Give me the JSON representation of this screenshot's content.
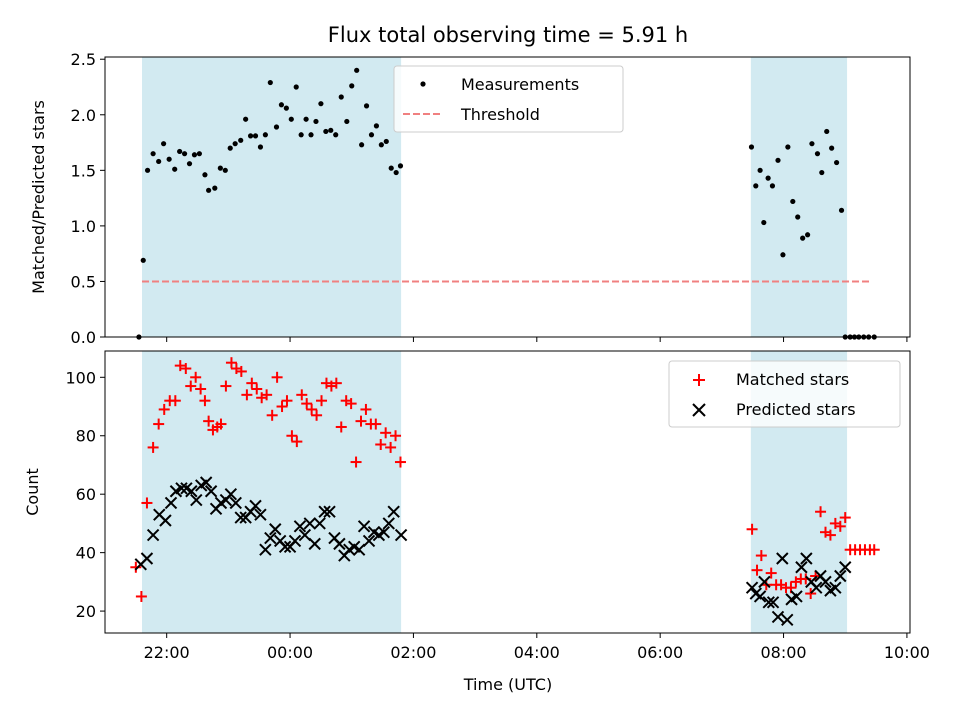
{
  "chart_data": {
    "type": "scatter",
    "title": "Flux total observing time = 5.91 h",
    "xlabel": "Time (UTC)",
    "x_tick_labels": [
      "22:00",
      "00:00",
      "02:00",
      "04:00",
      "06:00",
      "08:00",
      "10:00"
    ],
    "x_ticks_hours": [
      22,
      24,
      26,
      28,
      30,
      32,
      34
    ],
    "xlim_hours": [
      21.0,
      34.05
    ],
    "shaded_intervals_hours": [
      [
        21.6,
        25.8
      ],
      [
        31.47,
        33.03
      ]
    ],
    "shade_color": "#add8e6",
    "panels": [
      {
        "ylabel": "Matched/Predicted stars",
        "ylim": [
          0,
          2.52
        ],
        "y_ticks": [
          0.0,
          0.5,
          1.0,
          1.5,
          2.0,
          2.5
        ],
        "y_tick_labels": [
          "0.0",
          "0.5",
          "1.0",
          "1.5",
          "2.0",
          "2.5"
        ],
        "grid": false,
        "legend_position": "top-center",
        "series": [
          {
            "name": "Measurements",
            "marker": "dot",
            "color": "#000000",
            "x": [
              21.55,
              21.62,
              21.69,
              21.78,
              21.87,
              21.95,
              22.04,
              22.13,
              22.21,
              22.29,
              22.37,
              22.45,
              22.53,
              22.62,
              22.68,
              22.78,
              22.87,
              22.95,
              23.03,
              23.11,
              23.2,
              23.28,
              23.36,
              23.44,
              23.52,
              23.6,
              23.68,
              23.78,
              23.86,
              23.94,
              24.02,
              24.1,
              24.18,
              24.26,
              24.34,
              24.42,
              24.5,
              24.58,
              24.66,
              24.74,
              24.83,
              24.92,
              25.0,
              25.08,
              25.16,
              25.24,
              25.32,
              25.4,
              25.48,
              25.56,
              25.64,
              25.72,
              25.79,
              31.48,
              31.55,
              31.62,
              31.68,
              31.75,
              31.82,
              31.91,
              31.99,
              32.07,
              32.15,
              32.23,
              32.31,
              32.39,
              32.46,
              32.55,
              32.62,
              32.7,
              32.78,
              32.86,
              32.94,
              33.0,
              33.08,
              33.15,
              33.22,
              33.3,
              33.38,
              33.47
            ],
            "y": [
              0.0,
              0.69,
              1.5,
              1.65,
              1.58,
              1.74,
              1.6,
              1.51,
              1.67,
              1.65,
              1.56,
              1.64,
              1.65,
              1.46,
              1.32,
              1.34,
              1.52,
              1.5,
              1.7,
              1.74,
              1.77,
              1.96,
              1.81,
              1.81,
              1.71,
              1.82,
              2.29,
              1.89,
              2.09,
              2.06,
              1.96,
              2.25,
              1.82,
              1.96,
              1.82,
              1.94,
              2.1,
              1.85,
              1.86,
              1.82,
              2.16,
              1.94,
              2.26,
              2.4,
              1.73,
              2.08,
              1.82,
              1.9,
              1.73,
              1.76,
              1.52,
              1.48,
              1.54,
              1.71,
              1.36,
              1.5,
              1.03,
              1.43,
              1.36,
              1.59,
              0.74,
              1.71,
              1.22,
              1.08,
              0.89,
              0.92,
              1.74,
              1.65,
              1.48,
              1.85,
              1.7,
              1.57,
              1.14,
              0.0,
              0.0,
              0.0,
              0.0,
              0.0,
              0.0,
              0.0
            ]
          },
          {
            "name": "Threshold",
            "marker": "dashed-line",
            "color": "#f08080",
            "x": [
              21.6,
              33.4
            ],
            "y": [
              0.5,
              0.5
            ]
          }
        ]
      },
      {
        "ylabel": "Count",
        "ylim": [
          12.5,
          109
        ],
        "y_ticks": [
          20,
          40,
          60,
          80,
          100
        ],
        "y_tick_labels": [
          "20",
          "40",
          "60",
          "80",
          "100"
        ],
        "grid": false,
        "legend_position": "top-right",
        "series": [
          {
            "name": "Matched stars",
            "marker": "plus",
            "color": "#ff0000",
            "x": [
              21.5,
              21.59,
              21.68,
              21.78,
              21.87,
              21.96,
              22.05,
              22.14,
              22.22,
              22.31,
              22.39,
              22.47,
              22.55,
              22.62,
              22.68,
              22.75,
              22.82,
              22.88,
              22.96,
              23.05,
              23.13,
              23.21,
              23.3,
              23.38,
              23.46,
              23.54,
              23.62,
              23.71,
              23.79,
              23.87,
              23.95,
              24.03,
              24.11,
              24.19,
              24.27,
              24.35,
              24.43,
              24.51,
              24.59,
              24.67,
              24.75,
              24.83,
              24.91,
              24.99,
              25.07,
              25.15,
              25.23,
              25.31,
              25.39,
              25.47,
              25.55,
              25.63,
              25.71,
              25.79,
              31.49,
              31.57,
              31.64,
              31.72,
              31.8,
              31.88,
              31.96,
              32.04,
              32.12,
              32.2,
              32.28,
              32.36,
              32.44,
              32.52,
              32.6,
              32.68,
              32.76,
              32.84,
              32.92,
              33.0,
              33.08,
              33.16,
              33.24,
              33.32,
              33.4,
              33.47
            ],
            "y": [
              35,
              25,
              57,
              76,
              84,
              89,
              92,
              92,
              104,
              103,
              97,
              100,
              96,
              92,
              85,
              82,
              83,
              84,
              97,
              105,
              103,
              102,
              94,
              98,
              96,
              93,
              94,
              87,
              100,
              90,
              92,
              80,
              78,
              94,
              91,
              89,
              87,
              92,
              98,
              97,
              98,
              83,
              92,
              91,
              71,
              85,
              89,
              84,
              84,
              77,
              81,
              76,
              80,
              71,
              48,
              34,
              39,
              29,
              33,
              29,
              29,
              28,
              28,
              30,
              31,
              31,
              26,
              32,
              54,
              47,
              46,
              50,
              49,
              52,
              41,
              41,
              41,
              41,
              41,
              41
            ]
          },
          {
            "name": "Predicted stars",
            "marker": "x",
            "color": "#000000",
            "x": [
              21.58,
              21.68,
              21.78,
              21.88,
              21.98,
              22.07,
              22.15,
              22.24,
              22.32,
              22.4,
              22.48,
              22.56,
              22.64,
              22.72,
              22.8,
              22.88,
              22.96,
              23.04,
              23.12,
              23.2,
              23.28,
              23.36,
              23.44,
              23.52,
              23.6,
              23.68,
              23.76,
              23.84,
              23.92,
              24.0,
              24.08,
              24.16,
              24.24,
              24.32,
              24.4,
              24.48,
              24.56,
              24.64,
              24.72,
              24.8,
              24.88,
              24.96,
              25.04,
              25.12,
              25.2,
              25.28,
              25.36,
              25.44,
              25.52,
              25.6,
              25.68,
              25.8,
              31.49,
              31.55,
              31.62,
              31.69,
              31.76,
              31.83,
              31.91,
              31.98,
              32.06,
              32.13,
              32.21,
              32.29,
              32.37,
              32.45,
              32.53,
              32.6,
              32.68,
              32.76,
              32.84,
              32.92,
              33.0
            ],
            "y": [
              36,
              38,
              46,
              53,
              51,
              57,
              61,
              62,
              62,
              61,
              58,
              63,
              64,
              61,
              55,
              57,
              58,
              60,
              57,
              52,
              52,
              54,
              56,
              53,
              41,
              45,
              48,
              44,
              42,
              42,
              44,
              49,
              46,
              50,
              43,
              50,
              54,
              54,
              45,
              43,
              39,
              41,
              42,
              41,
              49,
              44,
              47,
              46,
              47,
              50,
              54,
              46,
              28,
              26,
              25,
              30,
              23,
              23,
              18,
              38,
              17,
              24,
              25,
              35,
              38,
              30,
              28,
              32,
              30,
              27,
              28,
              32,
              35
            ]
          }
        ]
      }
    ]
  }
}
